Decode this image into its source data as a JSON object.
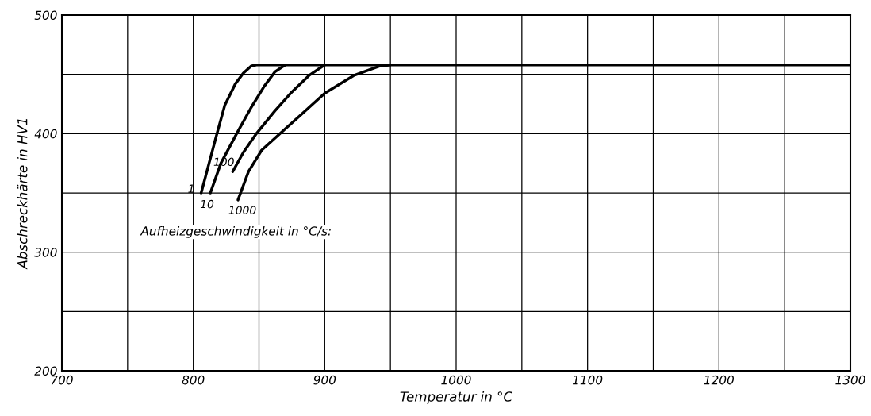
{
  "chart_data": {
    "type": "line",
    "xlabel": "Temperatur in °C",
    "ylabel": "Abschreckhärte in HV1",
    "xlim": [
      700,
      1300
    ],
    "ylim": [
      200,
      500
    ],
    "xticks": [
      700,
      {
        "value": 750,
        "label": null
      },
      800,
      {
        "value": 850,
        "label": null
      },
      900,
      {
        "value": 950,
        "label": null
      },
      1000,
      {
        "value": 1050,
        "label": null
      },
      1100,
      {
        "value": 1150,
        "label": null
      },
      1200,
      {
        "value": 1250,
        "label": null
      },
      1300
    ],
    "yticks": [
      200,
      {
        "value": 250,
        "label": null
      },
      300,
      {
        "value": 350,
        "label": null
      },
      400,
      {
        "value": 450,
        "label": null
      },
      500
    ],
    "grid": true,
    "marker": "none",
    "line_style": "solid",
    "series": [
      {
        "name": "1",
        "color": "#000000",
        "x": [
          806,
          812,
          818,
          824,
          832,
          838,
          844,
          848,
          1300
        ],
        "values": [
          350,
          375,
          400,
          424,
          442,
          451,
          457,
          458,
          458
        ]
      },
      {
        "name": "10",
        "color": "#000000",
        "x": [
          813,
          821,
          833,
          844,
          854,
          862,
          870
        ],
        "values": [
          350,
          375,
          400,
          422,
          440,
          452,
          458
        ]
      },
      {
        "name": "100",
        "color": "#000000",
        "x": [
          830,
          838,
          848,
          862,
          874,
          888,
          900
        ],
        "values": [
          368,
          384,
          400,
          419,
          434,
          449,
          458
        ]
      },
      {
        "name": "1000",
        "color": "#000000",
        "x": [
          834,
          842,
          852,
          866,
          882,
          900,
          922,
          942,
          950
        ],
        "values": [
          344,
          368,
          386,
          400,
          416,
          434,
          449,
          457,
          458
        ]
      }
    ],
    "annotations": [
      "Aufheizgeschwindigkeit in °C/s:"
    ]
  }
}
